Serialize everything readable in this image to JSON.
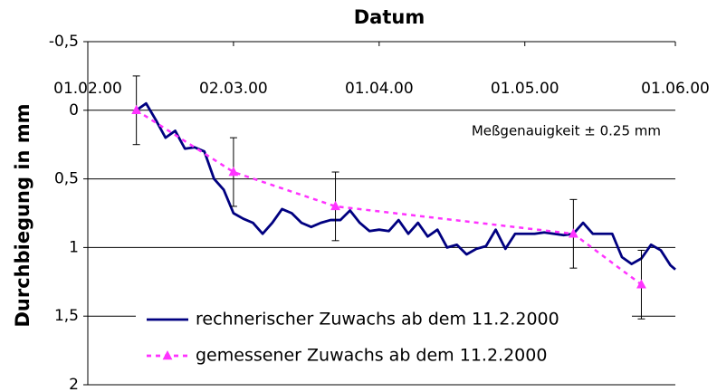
{
  "chart_data": {
    "type": "line",
    "title": "Datum",
    "ylabel": "Durchbiegung in mm",
    "annotation": "Meßgenauigkeit ± 0.25 mm",
    "ylim": [
      -0.5,
      2
    ],
    "y_inverted": true,
    "yticks": [
      {
        "value": -0.5,
        "label": "-0,5"
      },
      0,
      {
        "value": 0.5,
        "label": "0,5"
      },
      1,
      {
        "value": 1.5,
        "label": "1,5"
      },
      2
    ],
    "xlim": [
      "01.02.00",
      "01.06.00"
    ],
    "xticks": [
      "01.02.00",
      "02.03.00",
      "01.04.00",
      "01.05.00",
      "01.06.00"
    ],
    "grid": true,
    "legend": "lower center",
    "series": [
      {
        "name": "rechnerischer Zuwachs ab dem 11.2.2000",
        "color": "#000080",
        "style": "solid",
        "x": [
          "11.02.00",
          "13.02.00",
          "15.02.00",
          "17.02.00",
          "19.02.00",
          "21.02.00",
          "23.02.00",
          "25.02.00",
          "27.02.00",
          "29.02.00",
          "02.03.00",
          "04.03.00",
          "06.03.00",
          "08.03.00",
          "10.03.00",
          "12.03.00",
          "14.03.00",
          "16.03.00",
          "18.03.00",
          "20.03.00",
          "22.03.00",
          "24.03.00",
          "26.03.00",
          "28.03.00",
          "30.03.00",
          "01.04.00",
          "03.04.00",
          "05.04.00",
          "07.04.00",
          "09.04.00",
          "11.04.00",
          "13.04.00",
          "15.04.00",
          "17.04.00",
          "19.04.00",
          "21.04.00",
          "23.04.00",
          "25.04.00",
          "27.04.00",
          "29.04.00",
          "01.05.00",
          "03.05.00",
          "05.05.00",
          "07.05.00",
          "09.05.00",
          "11.05.00",
          "13.05.00",
          "15.05.00",
          "17.05.00",
          "19.05.00",
          "21.05.00",
          "23.05.00",
          "25.05.00",
          "27.05.00",
          "29.05.00",
          "31.05.00",
          "01.06.00"
        ],
        "values": [
          0,
          -0.05,
          0.07,
          0.2,
          0.15,
          0.28,
          0.27,
          0.3,
          0.5,
          0.58,
          0.75,
          0.79,
          0.82,
          0.9,
          0.82,
          0.72,
          0.75,
          0.82,
          0.85,
          0.82,
          0.8,
          0.8,
          0.73,
          0.82,
          0.88,
          0.87,
          0.88,
          0.8,
          0.9,
          0.82,
          0.92,
          0.87,
          1.0,
          0.98,
          1.05,
          1.01,
          0.99,
          0.87,
          1.01,
          0.9,
          0.9,
          0.9,
          0.89,
          0.9,
          0.91,
          0.9,
          0.82,
          0.9,
          0.9,
          0.9,
          1.07,
          1.12,
          1.08,
          0.98,
          1.02,
          1.13,
          1.16
        ]
      },
      {
        "name": "gemessener Zuwachs ab dem 11.2.2000",
        "color": "#ff33ff",
        "style": "dashed",
        "marker": "triangle",
        "x": [
          "11.02.00",
          "02.03.00",
          "23.03.00",
          "11.05.00",
          "25.05.00"
        ],
        "values": [
          0,
          0.45,
          0.7,
          0.9,
          1.27
        ],
        "errors": [
          0.25,
          0.25,
          0.25,
          0.25,
          0.25
        ]
      }
    ]
  }
}
